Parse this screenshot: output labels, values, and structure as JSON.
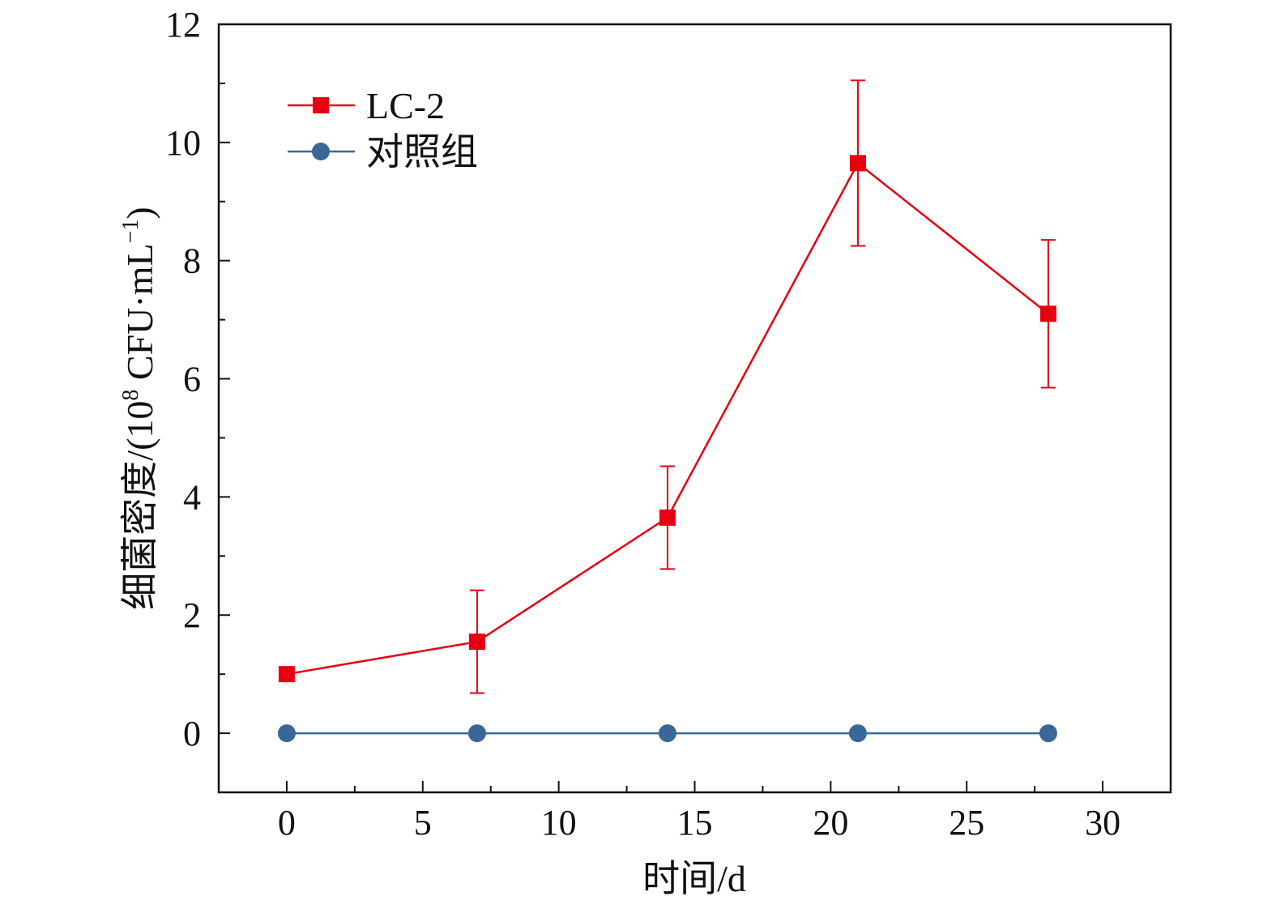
{
  "chart_data": {
    "type": "line",
    "xlabel": "时间/d",
    "ylabel_main": "细菌密度/(10",
    "ylabel_sup": "8",
    "ylabel_mid": " CFU·mL",
    "ylabel_sup2": "−1",
    "ylabel_end": ")",
    "xlim": [
      -2.5,
      32.5
    ],
    "ylim": [
      -1,
      12
    ],
    "x_ticks": [
      0,
      5,
      10,
      15,
      20,
      25,
      30
    ],
    "x_tick_labels": [
      "0",
      "5",
      "10",
      "15",
      "20",
      "25",
      "30"
    ],
    "y_ticks": [
      0,
      2,
      4,
      6,
      8,
      10,
      12
    ],
    "y_tick_labels": [
      "0",
      "2",
      "4",
      "6",
      "8",
      "10",
      "12"
    ],
    "grid": false,
    "legend_position": "top-left",
    "series": [
      {
        "name": "LC-2",
        "color": "#e60012",
        "marker": "square",
        "x": [
          0,
          7,
          14,
          21,
          28
        ],
        "y": [
          1.0,
          1.55,
          3.65,
          9.65,
          7.1
        ],
        "error": [
          0,
          0.87,
          0.87,
          1.4,
          1.25
        ]
      },
      {
        "name": "对照组",
        "color": "#3a6799",
        "marker": "circle",
        "x": [
          0,
          7,
          14,
          21,
          28
        ],
        "y": [
          0,
          0,
          0,
          0,
          0
        ],
        "error": [
          0,
          0,
          0,
          0,
          0
        ]
      }
    ]
  }
}
